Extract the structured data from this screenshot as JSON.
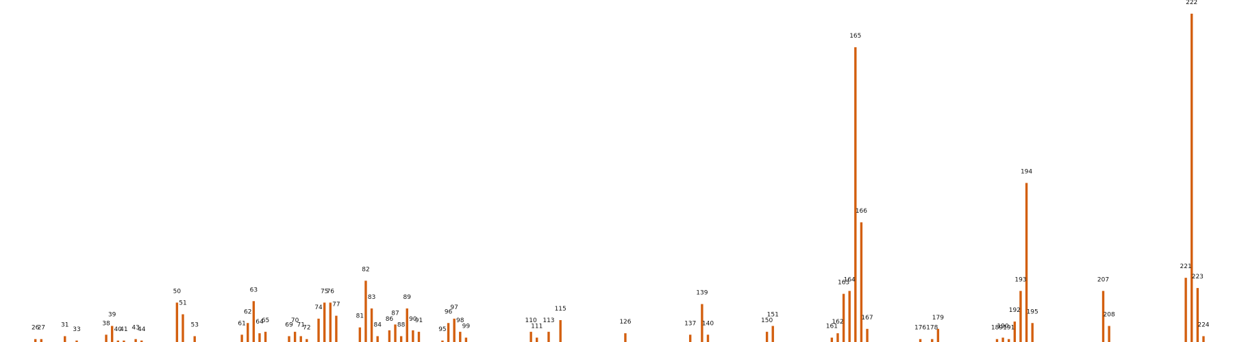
{
  "chart_data": {
    "type": "bar",
    "title": "",
    "xlabel": "",
    "ylabel": "",
    "bar_color": "#d35f0f",
    "axes_visible": false,
    "grid": false,
    "xlim": [
      20,
      229
    ],
    "ylim": [
      0,
      225
    ],
    "x": [
      26,
      27,
      31,
      33,
      38,
      39,
      40,
      41,
      43,
      44,
      50,
      51,
      53,
      61,
      62,
      63,
      64,
      65,
      69,
      70,
      71,
      72,
      74,
      75,
      76,
      77,
      81,
      82,
      83,
      84,
      86,
      87,
      88,
      89,
      90,
      91,
      95,
      96,
      97,
      98,
      99,
      110,
      111,
      113,
      115,
      126,
      137,
      139,
      140,
      150,
      151,
      161,
      162,
      163,
      164,
      165,
      166,
      167,
      176,
      178,
      179,
      189,
      190,
      191,
      192,
      193,
      194,
      195,
      207,
      208,
      221,
      222,
      223,
      224
    ],
    "values": [
      2,
      2,
      4,
      1,
      5,
      11,
      1,
      1,
      2,
      1,
      27,
      19,
      4,
      5,
      13,
      28,
      6,
      7,
      4,
      7,
      4,
      2,
      16,
      27,
      27,
      18,
      10,
      42,
      23,
      4,
      8,
      12,
      4,
      23,
      8,
      7,
      1,
      13,
      16,
      7,
      3,
      7,
      3,
      7,
      15,
      6,
      5,
      26,
      5,
      7,
      11,
      3,
      6,
      33,
      35,
      202,
      82,
      9,
      2,
      2,
      9,
      2,
      3,
      2,
      14,
      35,
      109,
      13,
      35,
      11,
      44,
      225,
      37,
      4
    ],
    "labels": [
      "26",
      "27",
      "31",
      "33",
      "38",
      "39",
      "40",
      "41",
      "43",
      "44",
      "50",
      "51",
      "53",
      "61",
      "62",
      "63",
      "64",
      "65",
      "69",
      "70",
      "71",
      "72",
      "74",
      "75",
      "76",
      "77",
      "81",
      "82",
      "83",
      "84",
      "86",
      "87",
      "88",
      "89",
      "90",
      "91",
      "95",
      "96",
      "97",
      "98",
      "99",
      "110",
      "111",
      "113",
      "115",
      "126",
      "137",
      "139",
      "140",
      "150",
      "151",
      "161",
      "162",
      "163",
      "164",
      "165",
      "166",
      "167",
      "176",
      "178",
      "179",
      "189",
      "190",
      "191",
      "192",
      "193",
      "194",
      "195",
      "207",
      "208",
      "221",
      "222",
      "223",
      "224"
    ]
  }
}
